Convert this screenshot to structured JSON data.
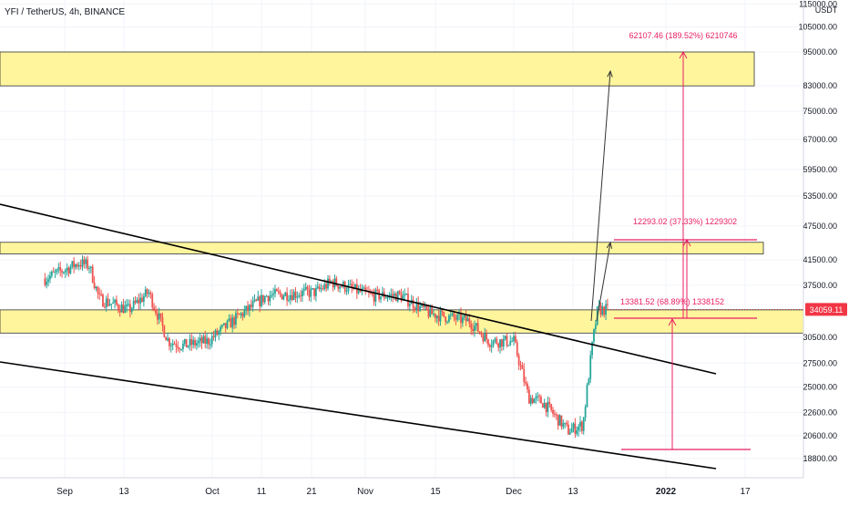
{
  "header": {
    "symbol_label": "YFI / TetherUS, 4h, BINANCE"
  },
  "price_scale": {
    "currency": "USDT",
    "current_price_label": "34059.11",
    "current_price_color": "#f23645"
  },
  "colors": {
    "zone_fill": "#fff59d",
    "zone_border": "#333333",
    "trendline": "#000000",
    "candle_up": "#26a69a",
    "candle_down": "#ef5350",
    "measure": "#e91e63",
    "arrow": "#333333"
  },
  "chart_data": {
    "type": "candlestick",
    "title": "YFI / TetherUS, 4h, BINANCE",
    "y_axis": {
      "scale": "log",
      "ticks": [
        115000,
        105000,
        95000,
        83000,
        75000,
        67000,
        59500,
        53500,
        47500,
        41500,
        37500,
        34000,
        30500,
        27500,
        25000,
        22600,
        20600,
        18800
      ]
    },
    "x_axis": {
      "ticks": [
        "Sep",
        "13",
        "Oct",
        "11",
        "21",
        "Nov",
        "15",
        "Dec",
        "13",
        "2022",
        "17"
      ]
    },
    "grid": true,
    "zones": [
      {
        "name": "top-zone",
        "low": 83000,
        "high": 95000
      },
      {
        "name": "mid-zone",
        "low": 42500,
        "high": 44500
      },
      {
        "name": "low-zone",
        "low": 31000,
        "high": 34000
      }
    ],
    "measurements": [
      {
        "label": "62107.46 (189.52%) 6210746"
      },
      {
        "label": "12293.02 (37.33%) 1229302"
      },
      {
        "label": "13381.52 (68.89%) 1338152"
      }
    ],
    "price_anchors": [
      {
        "date": "Aug 28",
        "close": 38500
      },
      {
        "date": "Sep 4",
        "close": 41000
      },
      {
        "date": "Sep 6",
        "close": 40500
      },
      {
        "date": "Sep 8",
        "close": 35500
      },
      {
        "date": "Sep 14",
        "close": 34000
      },
      {
        "date": "Sep 18",
        "close": 36500
      },
      {
        "date": "Sep 22",
        "close": 30000
      },
      {
        "date": "Sep 25",
        "close": 29500
      },
      {
        "date": "Sep 30",
        "close": 30000
      },
      {
        "date": "Oct 6",
        "close": 33000
      },
      {
        "date": "Oct 12",
        "close": 36000
      },
      {
        "date": "Oct 22",
        "close": 36500
      },
      {
        "date": "Oct 25",
        "close": 38000
      },
      {
        "date": "Nov 2",
        "close": 36000
      },
      {
        "date": "Nov 8",
        "close": 36000
      },
      {
        "date": "Nov 14",
        "close": 33500
      },
      {
        "date": "Nov 22",
        "close": 32500
      },
      {
        "date": "Nov 26",
        "close": 30000
      },
      {
        "date": "Dec 1",
        "close": 30000
      },
      {
        "date": "Dec 4",
        "close": 24000
      },
      {
        "date": "Dec 7",
        "close": 23500
      },
      {
        "date": "Dec 12",
        "close": 21000
      },
      {
        "date": "Dec 15",
        "close": 21500
      },
      {
        "date": "Dec 17",
        "close": 30000
      },
      {
        "date": "Dec 18",
        "close": 34000
      },
      {
        "date": "Dec 20",
        "close": 34059
      }
    ]
  }
}
